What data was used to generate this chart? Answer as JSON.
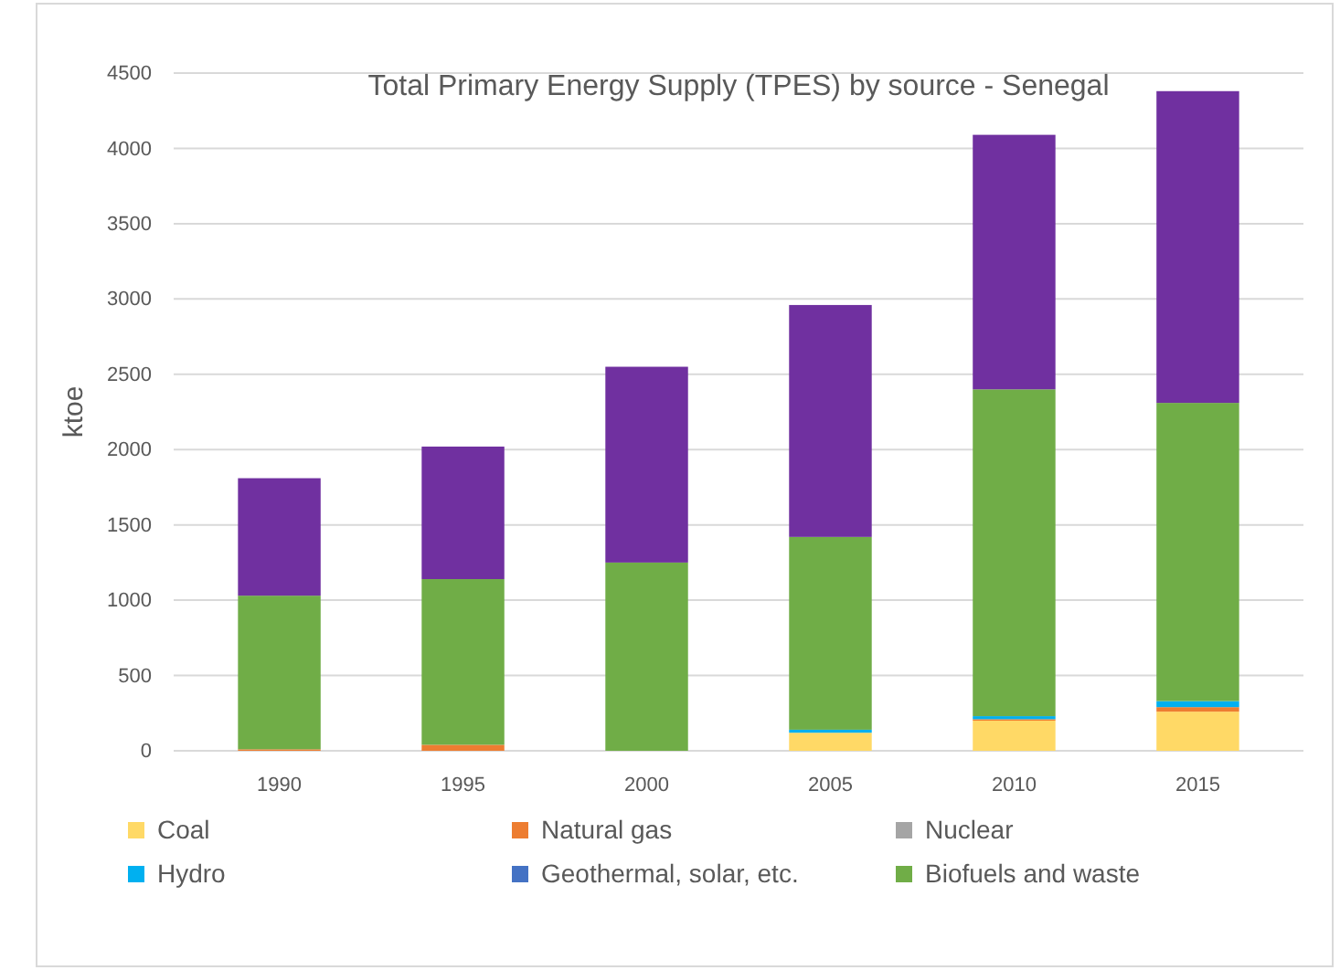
{
  "chart_data": {
    "type": "bar",
    "title": "Total Primary Energy Supply (TPES) by source - Senegal",
    "ylabel": "ktoe",
    "categories": [
      "1990",
      "1995",
      "2000",
      "2005",
      "2010",
      "2015"
    ],
    "stacked": true,
    "series": [
      {
        "name": "Coal",
        "color": "#ffd966",
        "values": [
          0,
          0,
          0,
          120,
          200,
          260
        ]
      },
      {
        "name": "Natural gas",
        "color": "#ed7d31",
        "values": [
          10,
          40,
          0,
          0,
          10,
          30
        ]
      },
      {
        "name": "Nuclear",
        "color": "#a5a5a5",
        "values": [
          0,
          0,
          0,
          0,
          0,
          0
        ]
      },
      {
        "name": "Hydro",
        "color": "#00b0f0",
        "values": [
          0,
          0,
          0,
          20,
          20,
          40
        ]
      },
      {
        "name": "Geothermal, solar, etc.",
        "color": "#4472c4",
        "values": [
          0,
          0,
          0,
          0,
          0,
          0
        ]
      },
      {
        "name": "Biofuels and waste",
        "color": "#70ad47",
        "values": [
          1020,
          1100,
          1250,
          1280,
          2170,
          1980
        ]
      },
      {
        "color": "#7030a0",
        "values": [
          780,
          880,
          1300,
          1540,
          1690,
          2070
        ]
      }
    ],
    "ylim": [
      0,
      4500
    ],
    "yticks": [
      0,
      500,
      1000,
      1500,
      2000,
      2500,
      3000,
      3500,
      4000,
      4500
    ],
    "grid": "y",
    "legend": "bottom"
  }
}
